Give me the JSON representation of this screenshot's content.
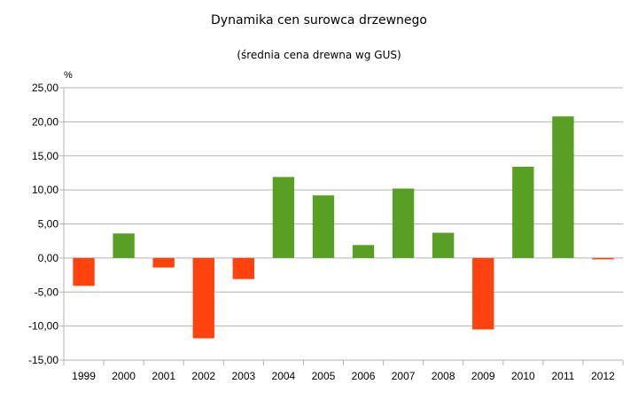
{
  "chart_data": {
    "type": "bar",
    "title": "Dynamika cen surowca drzewnego",
    "subtitle": "(średnia cena drewna wg GUS)",
    "ylabel": "%",
    "xlabel": "",
    "categories": [
      "1999",
      "2000",
      "2001",
      "2002",
      "2003",
      "2004",
      "2005",
      "2006",
      "2007",
      "2008",
      "2009",
      "2010",
      "2011",
      "2012"
    ],
    "values": [
      -4.1,
      3.6,
      -1.4,
      -11.8,
      -3.1,
      11.9,
      9.2,
      1.9,
      10.2,
      3.7,
      -10.5,
      13.4,
      20.8,
      -0.2
    ],
    "ylim": [
      -15,
      25
    ],
    "yticks": [
      "25,00",
      "20,00",
      "15,00",
      "10,00",
      "5,00",
      "0,00",
      "-5,00",
      "-10,00",
      "-15,00"
    ],
    "ytick_values": [
      25,
      20,
      15,
      10,
      5,
      0,
      -5,
      -10,
      -15
    ],
    "grid": true,
    "legend": "none",
    "colors": {
      "positive": "#57a023",
      "negative": "#ff420e",
      "grid": "#b3b3b3",
      "axis": "#b3b3b3"
    }
  }
}
